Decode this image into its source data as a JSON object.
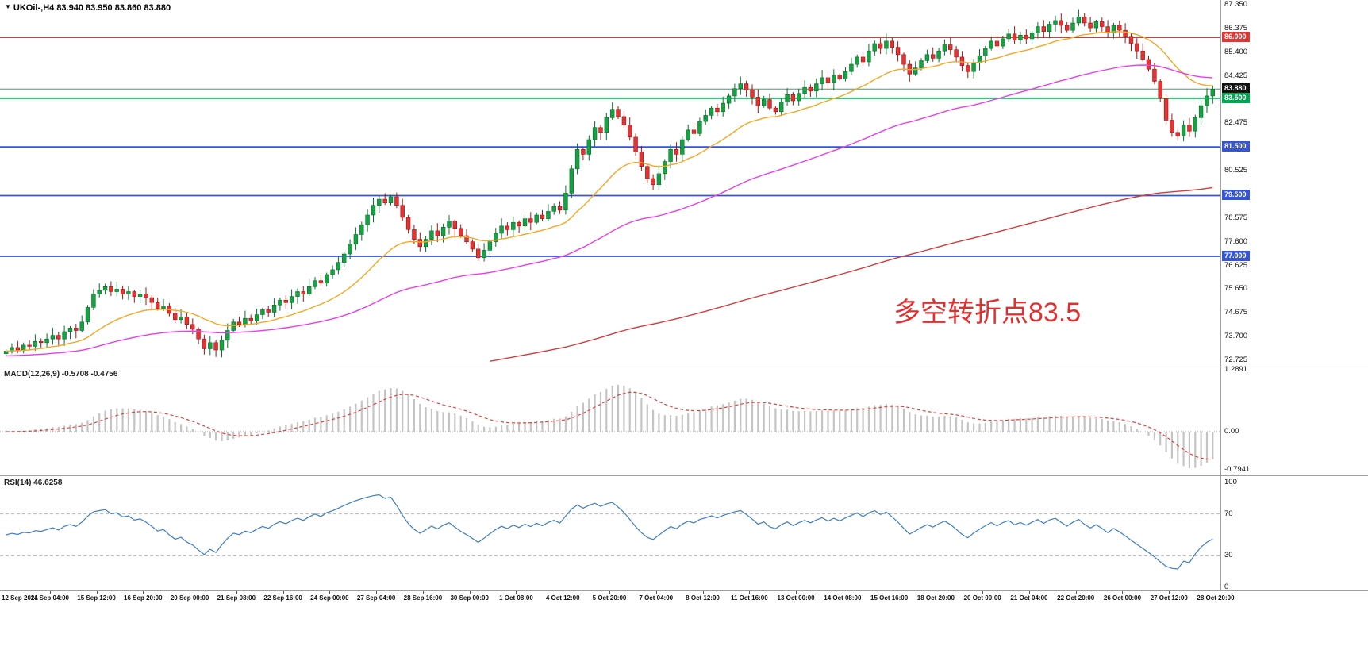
{
  "header": {
    "symbol_info": "UKOil-,H4  83.940 83.950 83.860 83.880"
  },
  "annotation": {
    "text": "多空转折点83.5",
    "color": "#e03030"
  },
  "panels": {
    "macd": {
      "label": "MACD(12,26,9) -0.5708 -0.4756",
      "axis_labels": [
        "1.2891",
        "0.00",
        "-0.7941"
      ]
    },
    "rsi": {
      "label": "RSI(14) 46.6258",
      "axis_labels": [
        "100",
        "70",
        "30",
        "0"
      ],
      "axis_values": [
        100,
        70,
        30,
        0
      ]
    }
  },
  "price_axis": {
    "ticks": [
      {
        "label": "87.350",
        "value": 87.35
      },
      {
        "label": "86.375",
        "value": 86.375
      },
      {
        "label": "85.400",
        "value": 85.4
      },
      {
        "label": "84.425",
        "value": 84.425
      },
      {
        "label": "82.475",
        "value": 82.475
      },
      {
        "label": "80.525",
        "value": 80.525
      },
      {
        "label": "78.575",
        "value": 78.575
      },
      {
        "label": "77.600",
        "value": 77.6
      },
      {
        "label": "76.625",
        "value": 76.625
      },
      {
        "label": "75.650",
        "value": 75.65
      },
      {
        "label": "74.675",
        "value": 74.675
      },
      {
        "label": "73.700",
        "value": 73.7
      },
      {
        "label": "72.725",
        "value": 72.725
      }
    ],
    "badges": [
      {
        "label": "86.000",
        "value": 86.0,
        "bg": "#e03636"
      },
      {
        "label": "83.880",
        "value": 83.88,
        "bg": "#111111"
      },
      {
        "label": "83.500",
        "value": 83.5,
        "bg": "#00a651"
      },
      {
        "label": "81.500",
        "value": 81.5,
        "bg": "#3555d4"
      },
      {
        "label": "79.500",
        "value": 79.5,
        "bg": "#3555d4"
      },
      {
        "label": "77.000",
        "value": 77.0,
        "bg": "#3555d4"
      }
    ]
  },
  "time_axis": {
    "labels": [
      "12 Sep 2021",
      "14 Sep 04:00",
      "15 Sep 12:00",
      "16 Sep 20:00",
      "20 Sep 00:00",
      "21 Sep 08:00",
      "22 Sep 16:00",
      "24 Sep 00:00",
      "27 Sep 04:00",
      "28 Sep 16:00",
      "30 Sep 00:00",
      "1 Oct 08:00",
      "4 Oct 12:00",
      "5 Oct 20:00",
      "7 Oct 04:00",
      "8 Oct 12:00",
      "11 Oct 16:00",
      "13 Oct 00:00",
      "14 Oct 08:00",
      "15 Oct 16:00",
      "18 Oct 20:00",
      "20 Oct 00:00",
      "21 Oct 04:00",
      "22 Oct 20:00",
      "26 Oct 00:00",
      "27 Oct 12:00",
      "28 Oct 20:00"
    ]
  },
  "colors": {
    "up": "#16a243",
    "up_border": "#0a6e2c",
    "down": "#e23434",
    "down_border": "#a31515",
    "macd_hist": "#c4c4c4",
    "macd_signal": "#e04040",
    "rsi_line": "#3d7dc8",
    "grid": "#b5b5b5",
    "separator": "#9e9e9e"
  },
  "chart_data": {
    "type": "candlestick",
    "symbol": "UKOil-",
    "timeframe": "H4",
    "title": "UKOil-,H4",
    "current_quote": {
      "open": 83.94,
      "high": 83.95,
      "low": 83.86,
      "close": 83.88
    },
    "y_range": [
      72.725,
      87.35
    ],
    "first_open": 73.0,
    "closes": [
      73.1,
      73.25,
      73.15,
      73.35,
      73.3,
      73.5,
      73.45,
      73.6,
      73.75,
      73.6,
      73.9,
      74.05,
      73.95,
      74.3,
      74.9,
      75.45,
      75.6,
      75.75,
      75.55,
      75.65,
      75.45,
      75.55,
      75.35,
      75.45,
      75.3,
      75.1,
      74.85,
      74.95,
      74.65,
      74.4,
      74.5,
      74.2,
      74.0,
      73.6,
      73.2,
      73.45,
      73.15,
      73.55,
      73.95,
      74.3,
      74.2,
      74.45,
      74.35,
      74.6,
      74.8,
      74.7,
      75.0,
      75.2,
      75.1,
      75.35,
      75.55,
      75.45,
      75.75,
      76.0,
      75.9,
      76.25,
      76.45,
      76.75,
      77.1,
      77.5,
      77.9,
      78.3,
      78.7,
      79.1,
      79.35,
      79.2,
      79.45,
      79.1,
      78.6,
      78.1,
      77.7,
      77.4,
      77.7,
      78.05,
      77.85,
      78.2,
      78.45,
      78.15,
      77.85,
      77.6,
      77.3,
      76.95,
      77.25,
      77.6,
      77.95,
      78.25,
      78.1,
      78.4,
      78.25,
      78.55,
      78.4,
      78.7,
      78.55,
      78.85,
      79.05,
      78.9,
      79.6,
      80.6,
      81.4,
      81.2,
      81.8,
      82.3,
      82.1,
      82.7,
      83.05,
      82.75,
      82.4,
      81.9,
      81.3,
      80.7,
      80.2,
      79.95,
      80.4,
      80.9,
      81.4,
      81.2,
      81.8,
      82.2,
      82.05,
      82.55,
      82.8,
      83.1,
      82.95,
      83.3,
      83.6,
      83.9,
      84.1,
      83.85,
      83.55,
      83.2,
      83.45,
      83.1,
      82.95,
      83.35,
      83.65,
      83.4,
      83.7,
      83.95,
      83.8,
      84.1,
      84.35,
      84.15,
      84.45,
      84.3,
      84.6,
      84.9,
      85.2,
      85.0,
      85.45,
      85.75,
      85.55,
      85.85,
      85.6,
      85.3,
      84.9,
      84.5,
      84.75,
      85.05,
      85.3,
      85.15,
      85.45,
      85.7,
      85.5,
      85.2,
      84.85,
      84.6,
      84.95,
      85.25,
      85.55,
      85.85,
      85.65,
      85.95,
      86.15,
      85.9,
      86.1,
      85.95,
      86.2,
      86.45,
      86.25,
      86.55,
      86.7,
      86.5,
      86.3,
      86.6,
      86.85,
      86.6,
      86.4,
      86.65,
      86.45,
      86.2,
      86.5,
      86.3,
      86.05,
      85.75,
      85.45,
      85.1,
      84.7,
      84.2,
      83.5,
      82.6,
      82.1,
      81.95,
      82.4,
      82.15,
      82.7,
      83.2,
      83.6,
      83.88
    ],
    "h_lines": [
      {
        "value": 86.0,
        "color": "#e03636",
        "width": 1.3
      },
      {
        "value": 83.88,
        "color": "#4f9a6d",
        "width": 1.0
      },
      {
        "value": 83.5,
        "color": "#00b050",
        "width": 1.8
      },
      {
        "value": 81.5,
        "color": "#3555d4",
        "width": 1.8
      },
      {
        "value": 79.5,
        "color": "#3555d4",
        "width": 1.8
      },
      {
        "value": 77.0,
        "color": "#3555d4",
        "width": 1.8
      }
    ],
    "moving_averages": [
      {
        "name": "fast-ma",
        "color": "#f5a623",
        "alpha": 0.09,
        "init": null
      },
      {
        "name": "medium-ma",
        "color": "#e83ee8",
        "alpha": 0.028,
        "init": 72.9
      },
      {
        "name": "slow-ma",
        "color": "#d23b3b",
        "alpha": 0.008,
        "init": 69.5
      }
    ],
    "indicators": {
      "macd": {
        "fast": 12,
        "slow": 26,
        "signal": 9,
        "current_macd": -0.5708,
        "current_signal": -0.4756,
        "y_range": [
          -0.7941,
          1.2891
        ]
      },
      "rsi": {
        "period": 14,
        "current": 46.6258,
        "levels": [
          70,
          30
        ],
        "y_range": [
          0,
          100
        ]
      }
    }
  }
}
